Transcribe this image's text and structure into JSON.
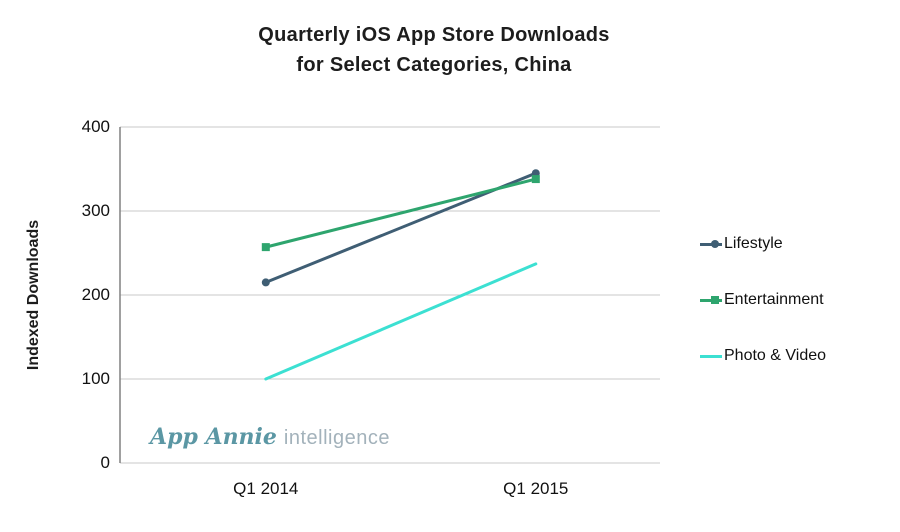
{
  "title": {
    "line1": "Quarterly iOS App Store Downloads",
    "line2": "for Select Categories, China"
  },
  "watermark": {
    "brand": "App Annie",
    "suffix": "intelligence"
  },
  "chart_data": {
    "type": "line",
    "title": "Quarterly iOS App Store Downloads for Select Categories, China",
    "xlabel": "",
    "ylabel": "Indexed Downloads",
    "categories": [
      "Q1 2014",
      "Q1 2015"
    ],
    "series": [
      {
        "name": "Lifestyle",
        "values": [
          215,
          345
        ],
        "color": "#3f5e74",
        "marker": "circle"
      },
      {
        "name": "Entertainment",
        "values": [
          257,
          338
        ],
        "color": "#2ea56e",
        "marker": "square"
      },
      {
        "name": "Photo & Video",
        "values": [
          100,
          237
        ],
        "color": "#3ce0d2",
        "marker": "none"
      }
    ],
    "ylim": [
      0,
      400
    ],
    "yticks": [
      0,
      100,
      200,
      300,
      400
    ],
    "grid": true,
    "legend_position": "right"
  },
  "colors": {
    "grid": "#c8c8c8",
    "axis": "#808080",
    "text": "#1d1d1d",
    "watermark_brand": "#5b97a4",
    "watermark_suffix": "#a3b2bb"
  }
}
